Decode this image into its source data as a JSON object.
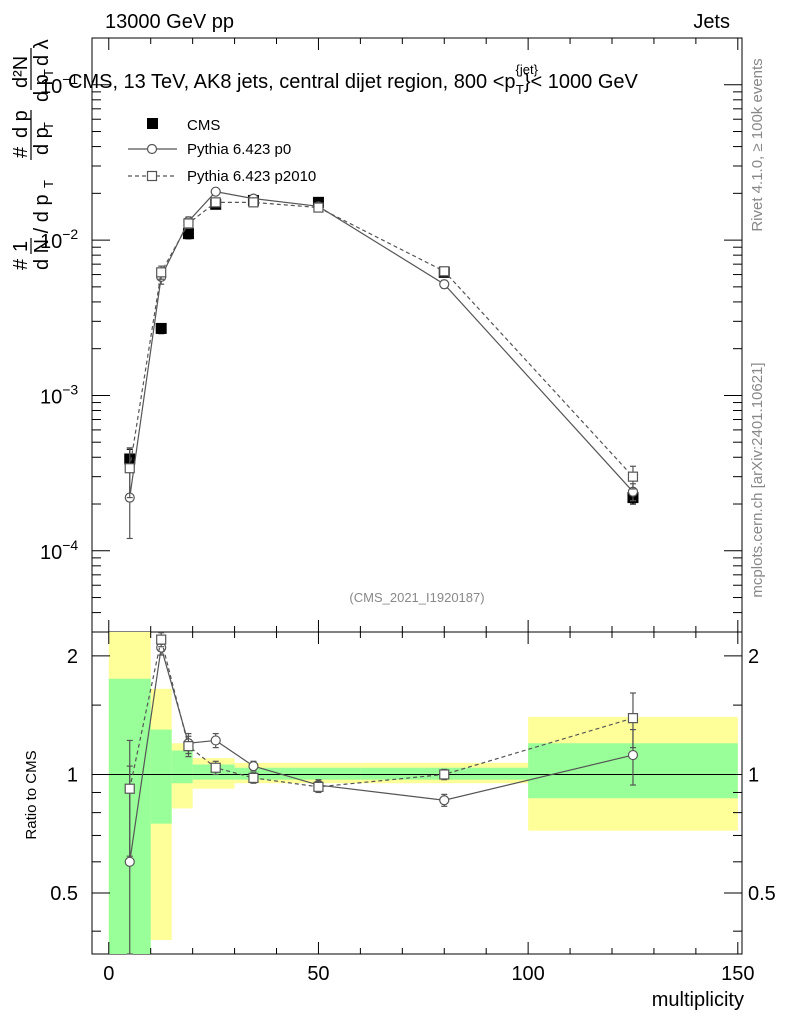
{
  "header": {
    "left": "13000 GeV pp",
    "right": "Jets"
  },
  "side_labels": {
    "rivet": "Rivet 4.1.0, ≥ 100k events",
    "mcplots": "mcplots.cern.ch [arXiv:2401.10621]"
  },
  "chart_data": {
    "type": "scatter",
    "title": "CMS, 13 TeV, AK8 jets, central dijet region, 800 <p_T^{jet}< 1000 GeV",
    "title_main": "CMS, 13 TeV, AK8 jets, central dijet region, 800 <p",
    "title_sup": "{jet}",
    "title_sub": "T",
    "title_tail": "}< 1000 GeV",
    "analysis_id": "(CMS_2021_I1920187)",
    "xlabel": "multiplicity",
    "ylabel": "1/N dN/dp_T d^2N/dp_T dλ",
    "ylabel_parts": {
      "hash": "#",
      "one": "1",
      "dN": "d N / d p",
      "T": "T",
      "d2N": "d²N",
      "dpT": "d p",
      "dl": "d λ"
    },
    "ratio_ylabel": "Ratio to CMS",
    "xlim": [
      -4,
      151
    ],
    "ylim": [
      3e-05,
      0.2
    ],
    "ratio_ylim": [
      0.35,
      2.3
    ],
    "x_ticks": [
      "0",
      "50",
      "100",
      "150"
    ],
    "x_tick_values": [
      0,
      50,
      100,
      150
    ],
    "y_ticks": [
      "10^-4",
      "10^-3",
      "10^-2",
      "10^-1"
    ],
    "y_tick_base": "10",
    "y_tick_exps": [
      "−4",
      "−3",
      "−2",
      "−1"
    ],
    "y_tick_values": [
      0.0001,
      0.001,
      0.01,
      0.1
    ],
    "ratio_ticks": [
      "0.5",
      "1",
      "2"
    ],
    "ratio_tick_values": [
      0.5,
      1,
      2
    ],
    "x": [
      5,
      12.5,
      19,
      25.5,
      34.5,
      50,
      80,
      125
    ],
    "bin_edges": [
      0,
      10,
      15,
      20,
      30,
      40,
      60,
      100,
      150
    ],
    "series": [
      {
        "name": "CMS",
        "style": "filled-square",
        "values": [
          0.00039,
          0.0027,
          0.011,
          0.017,
          0.018,
          0.0175,
          0.0062,
          0.00022
        ],
        "errors": [
          6e-05,
          0.0002,
          0.0008,
          0.0008,
          0.0008,
          0.0008,
          0.0004,
          2e-05
        ]
      },
      {
        "name": "Pythia 6.423 p0",
        "style": "open-circle-solid",
        "values": [
          0.00022,
          0.0058,
          0.0132,
          0.0205,
          0.0185,
          0.0165,
          0.0052,
          0.00024
        ],
        "errors": [
          0.0001,
          0.0006,
          0.0009,
          0.0009,
          0.0009,
          0.0008,
          0.0003,
          3e-05
        ],
        "ratio": [
          0.6,
          2.1,
          1.2,
          1.22,
          1.05,
          0.94,
          0.86,
          1.12
        ],
        "ratio_errors": [
          0.45,
          0.09,
          0.07,
          0.05,
          0.03,
          0.03,
          0.03,
          0.18
        ]
      },
      {
        "name": "Pythia 6.423 p2010",
        "style": "open-square-dashed",
        "values": [
          0.00034,
          0.0062,
          0.0128,
          0.0175,
          0.0175,
          0.0162,
          0.0063,
          0.0003
        ],
        "errors": [
          0.00012,
          0.0006,
          0.0009,
          0.0009,
          0.0008,
          0.0008,
          0.0004,
          5e-05
        ],
        "ratio": [
          0.92,
          2.2,
          1.18,
          1.04,
          0.98,
          0.93,
          1.0,
          1.39
        ],
        "ratio_errors": [
          0.3,
          0.09,
          0.07,
          0.04,
          0.03,
          0.03,
          0.03,
          0.22
        ]
      }
    ],
    "uncertainty_bands": {
      "green": [
        [
          0.35,
          1.75
        ],
        [
          0.75,
          1.3
        ],
        [
          0.95,
          1.15
        ],
        [
          0.97,
          1.06
        ],
        [
          0.97,
          1.04
        ],
        [
          0.97,
          1.04
        ],
        [
          0.97,
          1.04
        ],
        [
          0.87,
          1.2
        ]
      ],
      "yellow": [
        [
          0.35,
          2.3
        ],
        [
          0.38,
          1.65
        ],
        [
          0.82,
          1.2
        ],
        [
          0.92,
          1.1
        ],
        [
          0.95,
          1.07
        ],
        [
          0.95,
          1.07
        ],
        [
          0.95,
          1.07
        ],
        [
          0.72,
          1.4
        ]
      ]
    }
  }
}
